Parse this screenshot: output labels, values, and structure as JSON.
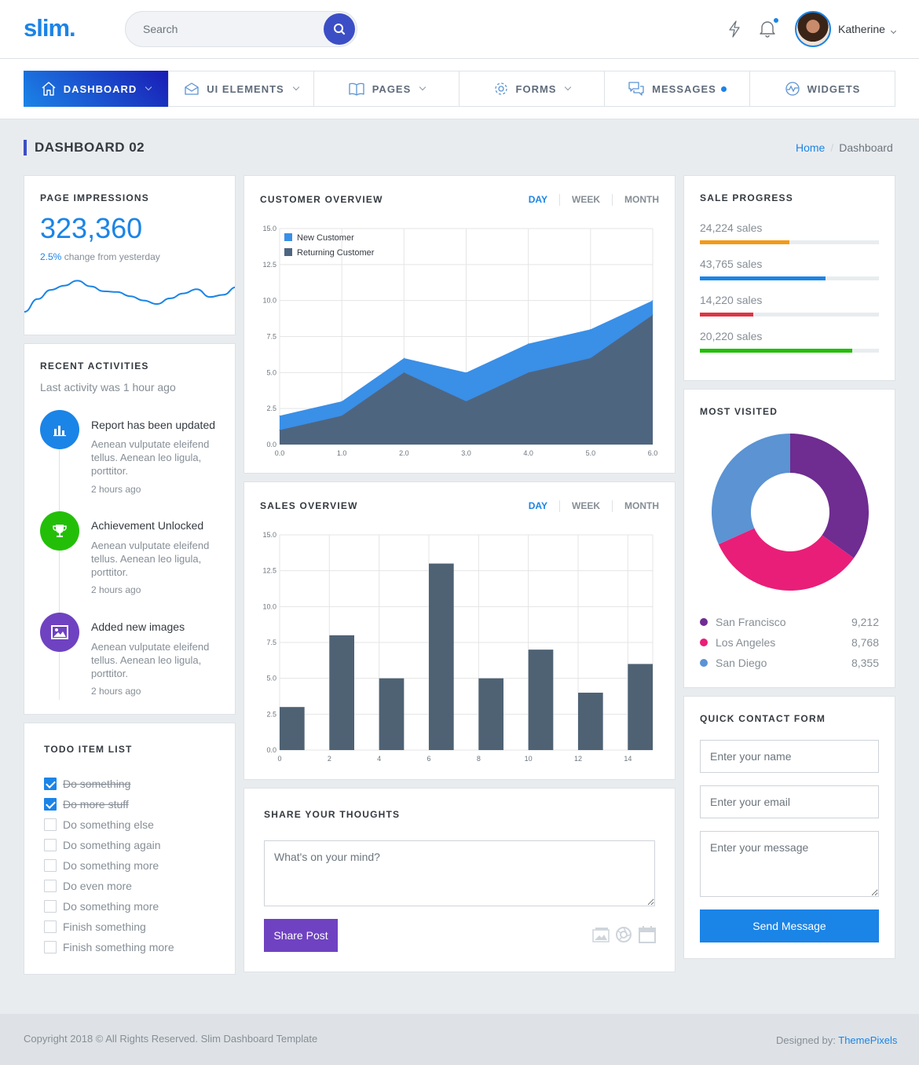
{
  "header": {
    "logo": "slim.",
    "search_placeholder": "Search",
    "user_name": "Katherine"
  },
  "nav": [
    {
      "label": "DASHBOARD",
      "icon": "home-icon",
      "dropdown": true
    },
    {
      "label": "UI ELEMENTS",
      "icon": "mail-open-icon",
      "dropdown": true
    },
    {
      "label": "PAGES",
      "icon": "book-icon",
      "dropdown": true
    },
    {
      "label": "FORMS",
      "icon": "gear-icon",
      "dropdown": true
    },
    {
      "label": "MESSAGES",
      "icon": "chat-icon",
      "badge": true
    },
    {
      "label": "WIDGETS",
      "icon": "pulse-icon"
    }
  ],
  "page": {
    "title": "DASHBOARD 02",
    "breadcrumb": {
      "home": "Home",
      "current": "Dashboard"
    }
  },
  "impressions": {
    "title": "PAGE IMPRESSIONS",
    "value": "323,360",
    "change": "2.5%",
    "change_text": " change from yesterday",
    "color": "#1b84e7"
  },
  "activities": {
    "title": "RECENT ACTIVITIES",
    "subtitle": "Last activity was 1 hour ago",
    "items": [
      {
        "title": "Report has been updated",
        "desc": "Aenean vulputate eleifend tellus. Aenean leo ligula, porttitor.",
        "time": "2 hours ago",
        "icon": "bar-chart-icon",
        "color": "#1b84e7"
      },
      {
        "title": "Achievement Unlocked",
        "desc": "Aenean vulputate eleifend tellus. Aenean leo ligula, porttitor.",
        "time": "2 hours ago",
        "icon": "trophy-icon",
        "color": "#23bf08"
      },
      {
        "title": "Added new images",
        "desc": "Aenean vulputate eleifend tellus. Aenean leo ligula, porttitor.",
        "time": "2 hours ago",
        "icon": "image-icon",
        "color": "#6f42c1"
      }
    ]
  },
  "todo": {
    "title": "TODO ITEM LIST",
    "items": [
      {
        "label": "Do something",
        "done": true
      },
      {
        "label": "Do more stuff",
        "done": true
      },
      {
        "label": "Do something else",
        "done": false
      },
      {
        "label": "Do something again",
        "done": false
      },
      {
        "label": "Do something more",
        "done": false
      },
      {
        "label": "Do even more",
        "done": false
      },
      {
        "label": "Do something more",
        "done": false
      },
      {
        "label": "Finish something",
        "done": false
      },
      {
        "label": "Finish something more",
        "done": false
      }
    ]
  },
  "customer_overview": {
    "title": "CUSTOMER OVERVIEW",
    "tabs": [
      "DAY",
      "WEEK",
      "MONTH"
    ]
  },
  "sales_overview": {
    "title": "SALES OVERVIEW",
    "tabs": [
      "DAY",
      "WEEK",
      "MONTH"
    ]
  },
  "share": {
    "title": "SHARE YOUR THOUGHTS",
    "placeholder": "What's on your mind?",
    "button": "Share Post"
  },
  "sale_progress": {
    "title": "SALE PROGRESS",
    "items": [
      {
        "label": "24,224 sales",
        "percent": 50,
        "color": "#f49917"
      },
      {
        "label": "43,765 sales",
        "percent": 70,
        "color": "#1b84e7"
      },
      {
        "label": "14,220 sales",
        "percent": 30,
        "color": "#dc3545"
      },
      {
        "label": "20,220 sales",
        "percent": 85,
        "color": "#23bf08"
      }
    ]
  },
  "most_visited": {
    "title": "MOST VISITED",
    "items": [
      {
        "label": "San Francisco",
        "value": "9,212",
        "color": "#6f2c91"
      },
      {
        "label": "Los Angeles",
        "value": "8,768",
        "color": "#e91e78"
      },
      {
        "label": "San Diego",
        "value": "8,355",
        "color": "#5b93d3"
      }
    ]
  },
  "contact": {
    "title": "QUICK CONTACT FORM",
    "name_placeholder": "Enter your name",
    "email_placeholder": "Enter your email",
    "message_placeholder": "Enter your message",
    "button": "Send Message"
  },
  "footer": {
    "copyright": "Copyright 2018 © All Rights Reserved. Slim Dashboard Template",
    "designed_by": "Designed by: ",
    "designer": "ThemePixels"
  },
  "chart_data": [
    {
      "type": "line",
      "name": "page-impressions-sparkline",
      "values": [
        0,
        1.8,
        3.1,
        3.7,
        4.4,
        3.6,
        2.9,
        2.8,
        2.2,
        1.6,
        1.1,
        1.9,
        2.6,
        3.2,
        2.1,
        2.4,
        3.5
      ]
    },
    {
      "type": "area",
      "x": [
        0,
        1,
        2,
        3,
        4,
        5,
        6
      ],
      "xlim": [
        0,
        6
      ],
      "ylim": [
        0,
        15
      ],
      "xticks": [
        "0.0",
        "1.0",
        "2.0",
        "3.0",
        "4.0",
        "5.0",
        "6.0"
      ],
      "yticks": [
        "0.0",
        "2.5",
        "5.0",
        "7.5",
        "10.0",
        "12.5",
        "15.0"
      ],
      "legend": "top-left",
      "series": [
        {
          "name": "New Customer",
          "values": [
            2,
            3,
            6,
            5,
            7,
            8,
            10
          ],
          "color": "#3a8fe7"
        },
        {
          "name": "Returning Customer",
          "values": [
            1,
            2,
            5,
            3,
            5,
            6,
            9
          ],
          "color": "#4e6580"
        }
      ]
    },
    {
      "type": "bar",
      "x": [
        0,
        2,
        4,
        6,
        8,
        10,
        12,
        14
      ],
      "values": [
        3,
        8,
        5,
        13,
        5,
        7,
        4,
        6
      ],
      "xlim": [
        0,
        15
      ],
      "ylim": [
        0,
        15
      ],
      "xticks": [
        "0",
        "2",
        "4",
        "6",
        "8",
        "10",
        "12",
        "14"
      ],
      "yticks": [
        "0.0",
        "2.5",
        "5.0",
        "7.5",
        "10.0",
        "12.5",
        "15.0"
      ],
      "color": "#4e6274"
    },
    {
      "type": "pie",
      "categories": [
        "San Francisco",
        "Los Angeles",
        "San Diego"
      ],
      "values": [
        9212,
        8768,
        8355
      ],
      "colors": [
        "#6f2c91",
        "#e91e78",
        "#5b93d3"
      ],
      "donut": true
    }
  ]
}
